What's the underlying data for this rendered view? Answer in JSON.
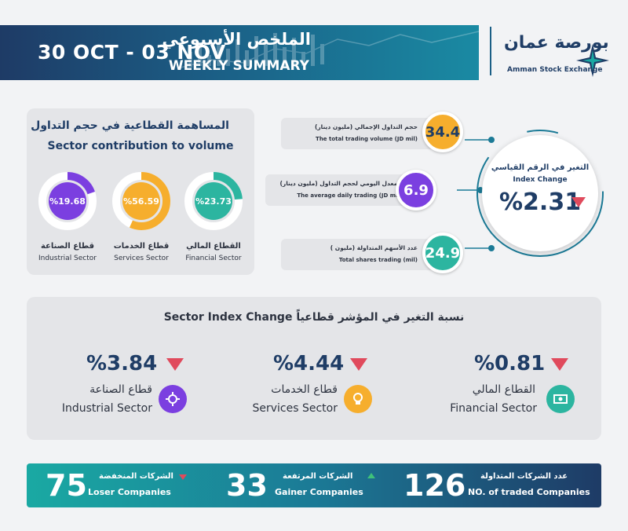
{
  "header": {
    "date_range": "30 OCT - 03 NOV",
    "title_ar": "الملخص الأسبوعي",
    "title_en": "WEEKLY SUMMARY",
    "logo_ar": "بورصة عمان",
    "logo_en": "Amman Stock Exchange"
  },
  "contribution": {
    "title_ar": "المساهمة القطاعية في حجم التداول",
    "title_en": "Sector contribution to volume",
    "sectors": [
      {
        "value": "%19.68",
        "fraction": 0.1968,
        "name_ar": "قطاع الصناعة",
        "name_en": "Industrial Sector",
        "color": "#7b3fe0"
      },
      {
        "value": "%56.59",
        "fraction": 0.5659,
        "name_ar": "قطاع الخدمات",
        "name_en": "Services Sector",
        "color": "#f6ae2d"
      },
      {
        "value": "%23.73",
        "fraction": 0.2373,
        "name_ar": "القطاع المالي",
        "name_en": "Financial Sector",
        "color": "#2cb5a0"
      }
    ]
  },
  "stats": [
    {
      "value": "34.4",
      "label_ar": "حجم التداول الإجمالي (مليون دينار)",
      "label_en": "The total trading volume (JD mil)",
      "color": "#f6ae2d",
      "text_color": "#1f3d66"
    },
    {
      "value": "6.9",
      "label_ar": "المعدل اليومي لحجم التداول (مليون دينار)",
      "label_en": "The average daily trading (JD mil)",
      "color": "#7b3fe0",
      "text_color": "#ffffff"
    },
    {
      "value": "24.9",
      "label_ar": "عدد الأسهم المتداولة (مليون )",
      "label_en": "Total shares trading (mil)",
      "color": "#2cb5a0",
      "text_color": "#ffffff"
    }
  ],
  "index_change": {
    "label_ar": "التغير في الرقم القياسي",
    "label_en": "Index Change",
    "value": "%2.31",
    "direction": "down"
  },
  "sector_index": {
    "title": "Sector Index Change   نسبة التغير في المؤشر قطاعياً",
    "sectors": [
      {
        "value": "%3.84",
        "name_ar": "قطاع الصناعة",
        "name_en": "Industrial Sector",
        "icon": "gear-icon",
        "color": "#7b3fe0"
      },
      {
        "value": "%4.44",
        "name_ar": "قطاع الخدمات",
        "name_en": "Services Sector",
        "icon": "lightbulb-icon",
        "color": "#f6ae2d"
      },
      {
        "value": "%0.81",
        "name_ar": "القطاع المالي",
        "name_en": "Financial Sector",
        "icon": "money-icon",
        "color": "#2cb5a0"
      }
    ]
  },
  "bottom": {
    "losers": {
      "value": "75",
      "label_ar": "الشركات المنخفضة",
      "label_en": "Loser Companies"
    },
    "gainers": {
      "value": "33",
      "label_ar": "الشركات المرتفعة",
      "label_en": "Gainer Companies"
    },
    "traded": {
      "value": "126",
      "label_ar": "عدد الشركات المتداولة",
      "label_en": "NO. of traded Companies"
    }
  },
  "colors": {
    "navy": "#1f3d66",
    "teal": "#2cb5a0",
    "purple": "#7b3fe0",
    "orange": "#f6ae2d",
    "down_red": "#e04a5c",
    "up_green": "#3fc27a"
  }
}
